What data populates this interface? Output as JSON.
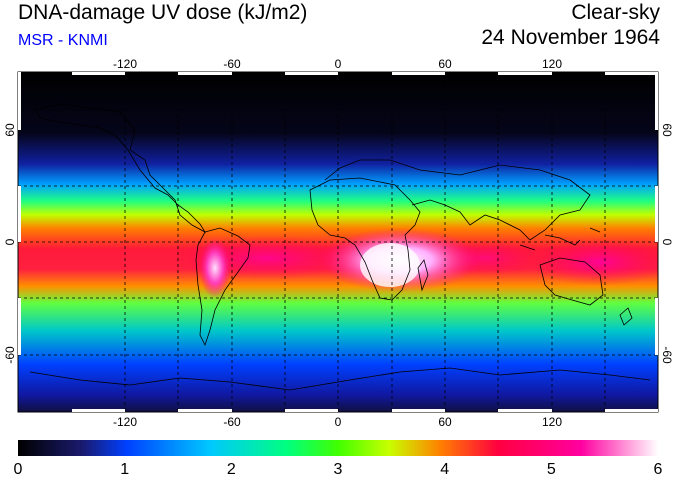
{
  "header": {
    "title": "DNA-damage UV dose (kJ/m2)",
    "subtitle": "MSR - KNMI",
    "sky": "Clear-sky",
    "date": "24 November 1964"
  },
  "colors": {
    "subtitle": "#0000ff",
    "scale": [
      "#000000",
      "#1a1a6e",
      "#0040ff",
      "#00c8ff",
      "#00ff80",
      "#40ff00",
      "#c8ff00",
      "#ff8000",
      "#ff0040",
      "#ff00a0",
      "#ffffff"
    ]
  },
  "map": {
    "lon_ticks": [
      "-120",
      "-60",
      "0",
      "60",
      "120"
    ],
    "lat_ticks": [
      "60",
      "0",
      "-60"
    ]
  },
  "colorbar": {
    "labels": [
      "0",
      "1",
      "2",
      "3",
      "4",
      "5",
      "6"
    ],
    "min": 0,
    "max": 6
  }
}
